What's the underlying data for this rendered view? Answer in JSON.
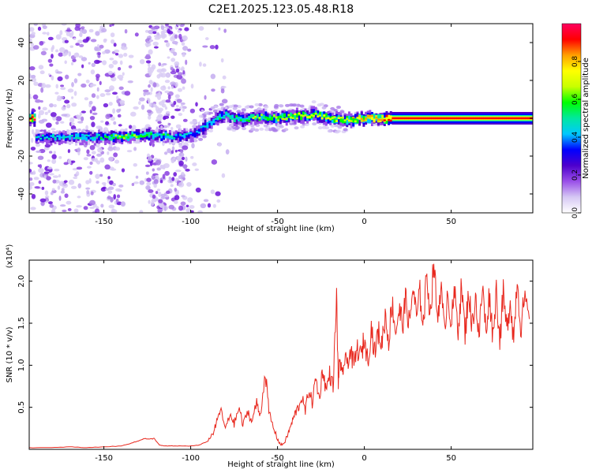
{
  "title": "C2E1.2025.123.05.48.R18",
  "chart_data": [
    {
      "type": "heatmap",
      "xlabel": "Height of straight line (km)",
      "ylabel": "Frequency (Hz)",
      "xlim": [
        -193,
        97
      ],
      "ylim": [
        -50,
        50
      ],
      "xticks": [
        -150,
        -100,
        -50,
        0,
        50
      ],
      "yticks": [
        -40,
        -20,
        0,
        20,
        40
      ],
      "grid": false,
      "colorbar": {
        "label": "Normalized spectral amplitude",
        "range": [
          0,
          1
        ],
        "ticks": [
          0.0,
          0.2,
          0.4,
          0.6,
          0.8
        ],
        "colors": [
          "#ffffff",
          "#d6c8f4",
          "#9a4fe8",
          "#4d00cc",
          "#0000ff",
          "#00c8ff",
          "#00e8a0",
          "#00ff00",
          "#c8ff00",
          "#ffff00",
          "#ffa000",
          "#ff0000",
          "#ff0060"
        ]
      },
      "ridge": [
        {
          "x": -190,
          "y": -10,
          "amp": 0.45
        },
        {
          "x": -170,
          "y": -10,
          "amp": 0.45
        },
        {
          "x": -150,
          "y": -10,
          "amp": 0.5
        },
        {
          "x": -140,
          "y": -10,
          "amp": 0.6
        },
        {
          "x": -130,
          "y": -9,
          "amp": 0.6
        },
        {
          "x": -120,
          "y": -9,
          "amp": 0.5
        },
        {
          "x": -110,
          "y": -10,
          "amp": 0.45
        },
        {
          "x": -100,
          "y": -9,
          "amp": 0.4
        },
        {
          "x": -95,
          "y": -6,
          "amp": 0.4
        },
        {
          "x": -90,
          "y": -3,
          "amp": 0.45
        },
        {
          "x": -85,
          "y": 0,
          "amp": 0.5
        },
        {
          "x": -80,
          "y": 2,
          "amp": 0.5
        },
        {
          "x": -75,
          "y": 0,
          "amp": 0.55
        },
        {
          "x": -70,
          "y": -1,
          "amp": 0.55
        },
        {
          "x": -60,
          "y": 1,
          "amp": 0.6
        },
        {
          "x": -50,
          "y": 0,
          "amp": 0.65
        },
        {
          "x": -40,
          "y": 1,
          "amp": 0.7
        },
        {
          "x": -30,
          "y": 2,
          "amp": 0.7
        },
        {
          "x": -20,
          "y": 0,
          "amp": 0.7
        },
        {
          "x": -10,
          "y": -1,
          "amp": 0.7
        },
        {
          "x": 0,
          "y": 0,
          "amp": 0.8
        },
        {
          "x": 10,
          "y": 0,
          "amp": 0.85
        },
        {
          "x": 15,
          "y": 0,
          "amp": 0.95
        },
        {
          "x": 95,
          "y": 0,
          "amp": 0.95
        }
      ]
    },
    {
      "type": "line",
      "xlabel": "Height of straight line (km)",
      "ylabel": "SNR (10 * v/v)",
      "scale_label": "(x10⁴)",
      "xlim": [
        -193,
        97
      ],
      "ylim": [
        0,
        2.25
      ],
      "xticks": [
        -150,
        -100,
        -50,
        0,
        50
      ],
      "yticks": [
        0.5,
        1.0,
        1.5,
        2.0
      ],
      "ytick_labels": [
        "0.5",
        "1.0",
        "1.5",
        "2.0"
      ],
      "grid": false,
      "series": [
        {
          "color": "#e8281e",
          "x": [
            -193,
            -180,
            -170,
            -160,
            -150,
            -140,
            -135,
            -130,
            -127,
            -124,
            -121,
            -118,
            -115,
            -110,
            -105,
            -100,
            -95,
            -90,
            -87,
            -85,
            -83,
            -80,
            -77,
            -75,
            -72,
            -70,
            -67,
            -65,
            -62,
            -60,
            -57,
            -55,
            -53,
            -50,
            -48,
            -46,
            -44,
            -42,
            -40,
            -38,
            -36,
            -34,
            -32,
            -30,
            -28,
            -26,
            -24,
            -22,
            -20,
            -18,
            -16,
            -15,
            -14,
            -13,
            -12,
            -10,
            -8,
            -6,
            -4,
            -2,
            0,
            2,
            4,
            6,
            8,
            10,
            12,
            14,
            16,
            18,
            20,
            22,
            24,
            26,
            28,
            30,
            32,
            34,
            36,
            38,
            40,
            42,
            44,
            46,
            48,
            50,
            52,
            54,
            56,
            58,
            60,
            62,
            64,
            66,
            68,
            70,
            72,
            74,
            76,
            78,
            80,
            82,
            84,
            86,
            88,
            90,
            92,
            95
          ],
          "y": [
            0.02,
            0.02,
            0.03,
            0.02,
            0.03,
            0.04,
            0.07,
            0.1,
            0.13,
            0.12,
            0.13,
            0.05,
            0.04,
            0.04,
            0.04,
            0.04,
            0.05,
            0.1,
            0.2,
            0.32,
            0.48,
            0.25,
            0.42,
            0.3,
            0.5,
            0.28,
            0.46,
            0.32,
            0.55,
            0.4,
            0.92,
            0.45,
            0.3,
            0.12,
            0.05,
            0.08,
            0.18,
            0.3,
            0.42,
            0.5,
            0.62,
            0.45,
            0.72,
            0.55,
            0.85,
            0.6,
            0.95,
            0.7,
            0.9,
            0.75,
            1.8,
            0.8,
            1.1,
            0.85,
            1.0,
            1.05,
            1.15,
            1.0,
            1.2,
            1.1,
            1.32,
            1.05,
            1.45,
            1.15,
            1.4,
            1.25,
            1.6,
            1.3,
            1.75,
            1.4,
            1.65,
            1.5,
            1.8,
            1.45,
            1.95,
            1.55,
            1.85,
            1.5,
            2.1,
            1.6,
            2.25,
            1.55,
            1.95,
            1.4,
            1.9,
            1.5,
            1.85,
            1.45,
            1.95,
            1.35,
            1.9,
            1.45,
            1.85,
            1.3,
            1.95,
            1.4,
            1.85,
            1.35,
            1.9,
            1.3,
            1.85,
            1.4,
            1.8,
            1.3,
            2.05,
            1.45,
            1.75,
            1.55
          ]
        }
      ]
    }
  ]
}
